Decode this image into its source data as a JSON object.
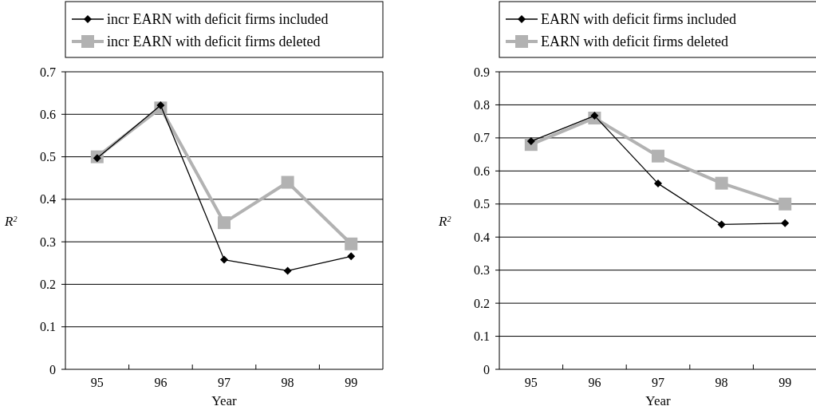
{
  "chart_data": [
    {
      "type": "line",
      "xlabel": "Year",
      "ylabel": "R$^{2}$",
      "categories": [
        "95",
        "96",
        "97",
        "98",
        "99"
      ],
      "ylim": [
        0,
        0.7
      ],
      "yticks": [
        0,
        0.1,
        0.2,
        0.3,
        0.4,
        0.5,
        0.6,
        0.7
      ],
      "grid": "y",
      "legend": "top",
      "line_style": "solid",
      "series": [
        {
          "name": "incr EARN with deficit firms included",
          "color": "#000000",
          "marker": "diamond",
          "values": [
            0.497,
            0.621,
            0.258,
            0.232,
            0.266
          ]
        },
        {
          "name": "incr EARN with deficit firms deleted",
          "color": "#b2b2b2",
          "marker": "square",
          "values": [
            0.5,
            0.615,
            0.345,
            0.44,
            0.295
          ]
        }
      ]
    },
    {
      "type": "line",
      "xlabel": "Year",
      "ylabel": "R$^{2}$",
      "categories": [
        "95",
        "96",
        "97",
        "98",
        "99"
      ],
      "ylim": [
        0,
        0.9
      ],
      "yticks": [
        0,
        0.1,
        0.2,
        0.3,
        0.4,
        0.5,
        0.6,
        0.7,
        0.8,
        0.9
      ],
      "grid": "y",
      "legend": "top",
      "line_style": "solid",
      "series": [
        {
          "name": "EARN with deficit firms included",
          "color": "#000000",
          "marker": "diamond",
          "values": [
            0.69,
            0.767,
            0.562,
            0.438,
            0.442
          ]
        },
        {
          "name": "EARN with deficit firms deleted",
          "color": "#b2b2b2",
          "marker": "square",
          "values": [
            0.68,
            0.76,
            0.645,
            0.563,
            0.5
          ]
        }
      ]
    }
  ]
}
